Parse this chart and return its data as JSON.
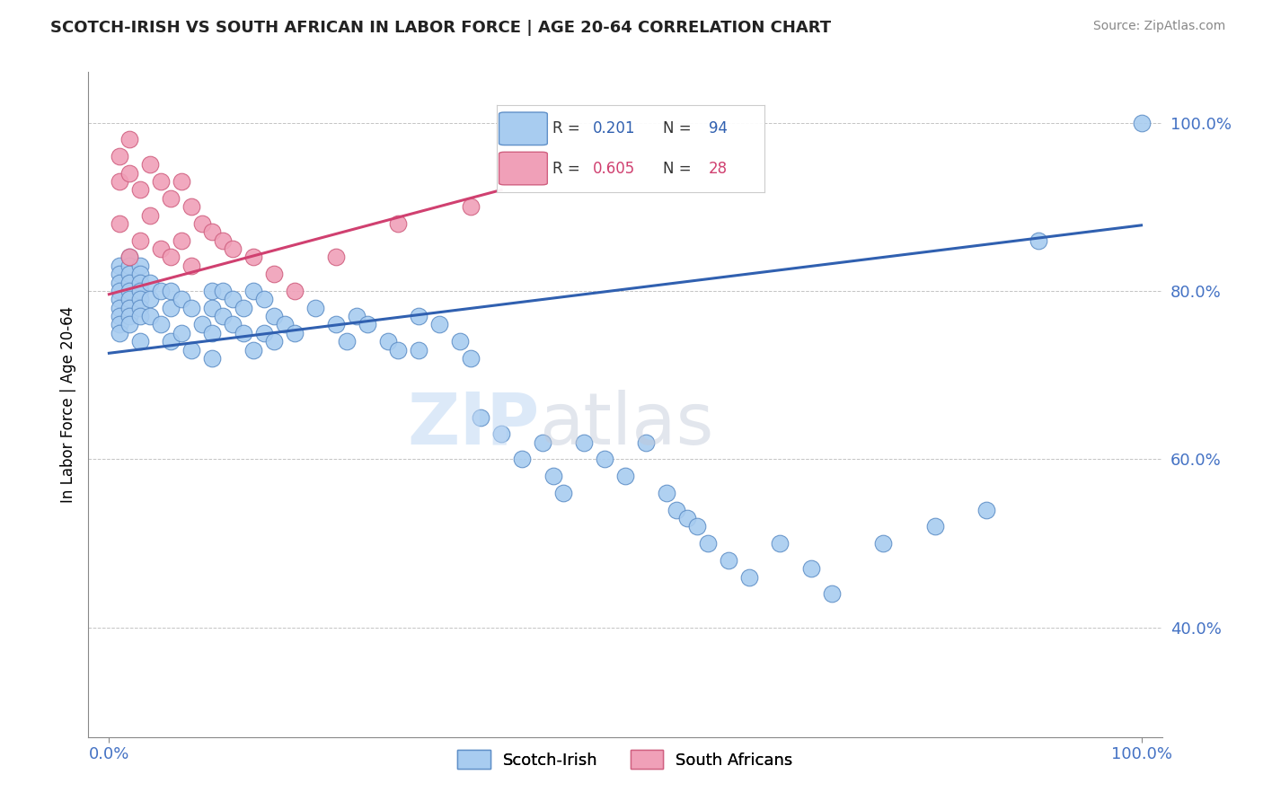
{
  "title": "SCOTCH-IRISH VS SOUTH AFRICAN IN LABOR FORCE | AGE 20-64 CORRELATION CHART",
  "source": "Source: ZipAtlas.com",
  "ylabel": "In Labor Force | Age 20-64",
  "xlim": [
    -0.02,
    1.02
  ],
  "ylim": [
    0.27,
    1.06
  ],
  "x_ticks": [
    0.0,
    1.0
  ],
  "x_tick_labels": [
    "0.0%",
    "100.0%"
  ],
  "y_ticks": [
    0.4,
    0.6,
    0.8,
    1.0
  ],
  "y_tick_labels": [
    "40.0%",
    "60.0%",
    "80.0%",
    "100.0%"
  ],
  "blue_color": "#A8CCF0",
  "blue_edge": "#6090C8",
  "pink_color": "#F0A0B8",
  "pink_edge": "#D06080",
  "blue_line_color": "#3060B0",
  "pink_line_color": "#D04070",
  "R_blue": 0.201,
  "N_blue": 94,
  "R_pink": 0.605,
  "N_pink": 28,
  "legend_blue_label": "Scotch-Irish",
  "legend_pink_label": "South Africans",
  "blue_trend_x0": 0.0,
  "blue_trend_y0": 0.726,
  "blue_trend_x1": 1.0,
  "blue_trend_y1": 0.878,
  "pink_trend_x0": 0.0,
  "pink_trend_y0": 0.796,
  "pink_trend_x1": 0.38,
  "pink_trend_y1": 0.92,
  "scotch_irish_x": [
    0.01,
    0.01,
    0.01,
    0.01,
    0.01,
    0.01,
    0.01,
    0.01,
    0.01,
    0.02,
    0.02,
    0.02,
    0.02,
    0.02,
    0.02,
    0.02,
    0.02,
    0.02,
    0.03,
    0.03,
    0.03,
    0.03,
    0.03,
    0.03,
    0.03,
    0.03,
    0.04,
    0.04,
    0.04,
    0.05,
    0.05,
    0.06,
    0.06,
    0.06,
    0.07,
    0.07,
    0.08,
    0.08,
    0.09,
    0.1,
    0.1,
    0.1,
    0.1,
    0.11,
    0.11,
    0.12,
    0.12,
    0.13,
    0.13,
    0.14,
    0.14,
    0.15,
    0.15,
    0.16,
    0.16,
    0.17,
    0.18,
    0.2,
    0.22,
    0.23,
    0.24,
    0.25,
    0.27,
    0.28,
    0.3,
    0.3,
    0.32,
    0.34,
    0.35,
    0.36,
    0.38,
    0.4,
    0.42,
    0.43,
    0.44,
    0.46,
    0.48,
    0.5,
    0.52,
    0.54,
    0.55,
    0.56,
    0.57,
    0.58,
    0.6,
    0.62,
    0.65,
    0.68,
    0.7,
    0.75,
    0.8,
    0.85,
    0.9,
    1.0
  ],
  "scotch_irish_y": [
    0.83,
    0.82,
    0.81,
    0.8,
    0.79,
    0.78,
    0.77,
    0.76,
    0.75,
    0.84,
    0.83,
    0.82,
    0.81,
    0.8,
    0.79,
    0.78,
    0.77,
    0.76,
    0.83,
    0.82,
    0.81,
    0.8,
    0.79,
    0.78,
    0.77,
    0.74,
    0.81,
    0.79,
    0.77,
    0.8,
    0.76,
    0.8,
    0.78,
    0.74,
    0.79,
    0.75,
    0.78,
    0.73,
    0.76,
    0.8,
    0.78,
    0.75,
    0.72,
    0.8,
    0.77,
    0.79,
    0.76,
    0.78,
    0.75,
    0.8,
    0.73,
    0.79,
    0.75,
    0.77,
    0.74,
    0.76,
    0.75,
    0.78,
    0.76,
    0.74,
    0.77,
    0.76,
    0.74,
    0.73,
    0.77,
    0.73,
    0.76,
    0.74,
    0.72,
    0.65,
    0.63,
    0.6,
    0.62,
    0.58,
    0.56,
    0.62,
    0.6,
    0.58,
    0.62,
    0.56,
    0.54,
    0.53,
    0.52,
    0.5,
    0.48,
    0.46,
    0.5,
    0.47,
    0.44,
    0.5,
    0.52,
    0.54,
    0.86,
    1.0
  ],
  "south_african_x": [
    0.01,
    0.01,
    0.01,
    0.02,
    0.02,
    0.02,
    0.03,
    0.03,
    0.04,
    0.04,
    0.05,
    0.05,
    0.06,
    0.06,
    0.07,
    0.07,
    0.08,
    0.08,
    0.09,
    0.1,
    0.11,
    0.12,
    0.14,
    0.16,
    0.18,
    0.22,
    0.28,
    0.35
  ],
  "south_african_y": [
    0.96,
    0.93,
    0.88,
    0.98,
    0.94,
    0.84,
    0.92,
    0.86,
    0.95,
    0.89,
    0.93,
    0.85,
    0.91,
    0.84,
    0.93,
    0.86,
    0.9,
    0.83,
    0.88,
    0.87,
    0.86,
    0.85,
    0.84,
    0.82,
    0.8,
    0.84,
    0.88,
    0.9
  ]
}
